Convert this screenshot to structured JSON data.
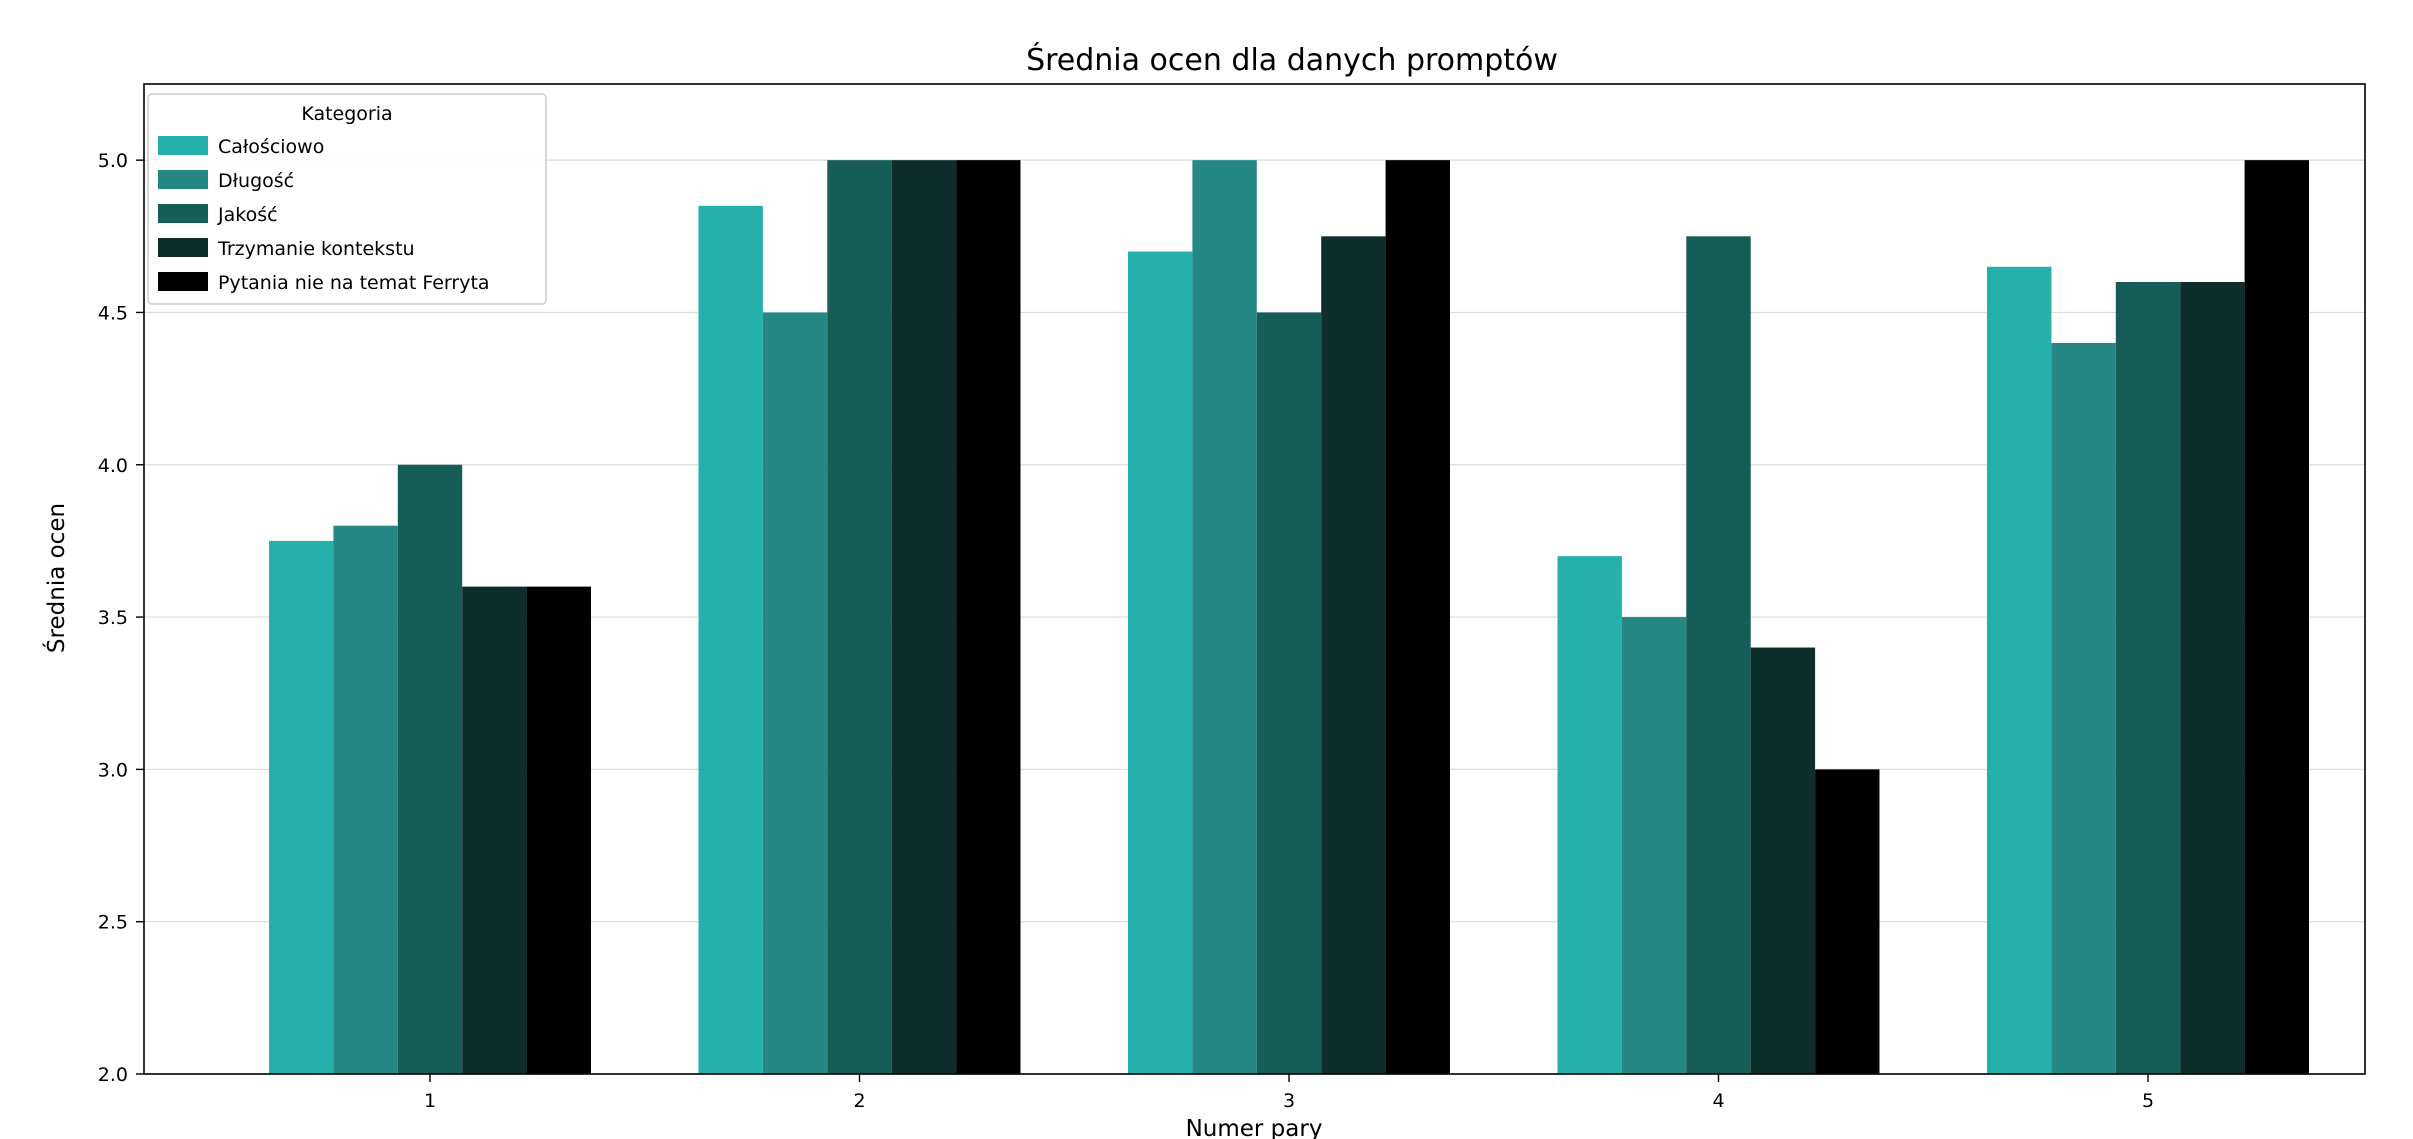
{
  "chart_data": {
    "type": "bar",
    "title": "Średnia ocen dla danych promptów",
    "xlabel": "Numer pary",
    "ylabel": "Średnia ocen",
    "categories": [
      "1",
      "2",
      "3",
      "4",
      "5"
    ],
    "ylim": [
      2.0,
      5.25
    ],
    "yticks": [
      "2.0",
      "2.5",
      "3.0",
      "3.5",
      "4.0",
      "4.5",
      "5.0"
    ],
    "grid": "horizontal",
    "legend": {
      "title": "Kategoria",
      "placement": "top-left"
    },
    "series": [
      {
        "name": "Całościowo",
        "color": "#25B0AB",
        "values": [
          3.75,
          4.85,
          4.7,
          3.7,
          4.65
        ]
      },
      {
        "name": "Długość",
        "color": "#258884",
        "values": [
          3.8,
          4.5,
          5.0,
          3.5,
          4.4
        ]
      },
      {
        "name": "Jakość",
        "color": "#165C57",
        "values": [
          4.0,
          5.0,
          4.5,
          4.75,
          4.6
        ]
      },
      {
        "name": "Trzymanie kontekstu",
        "color": "#0E2E2C",
        "values": [
          3.6,
          5.0,
          4.75,
          3.4,
          4.6
        ]
      },
      {
        "name": "Pytania nie na temat Ferryta",
        "color": "#000000",
        "values": [
          3.6,
          5.0,
          5.0,
          3.0,
          5.0
        ]
      }
    ]
  }
}
